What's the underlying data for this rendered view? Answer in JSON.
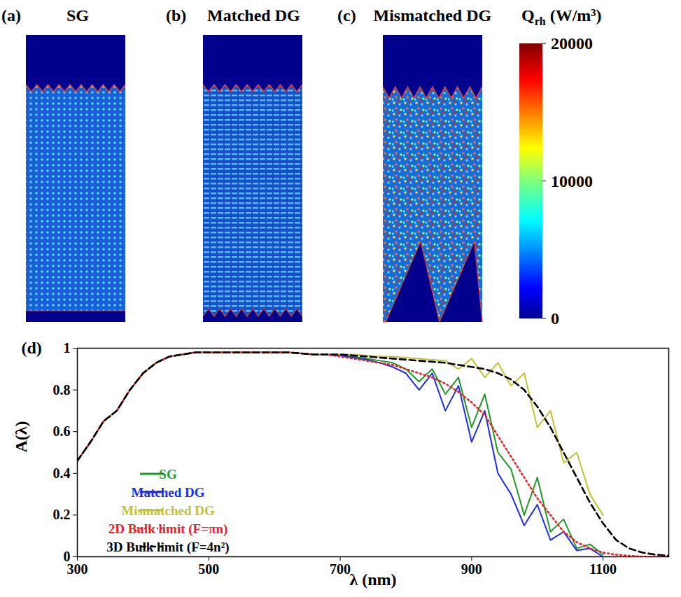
{
  "field_maps": {
    "panels": [
      {
        "label": "(a)",
        "title": "SG"
      },
      {
        "label": "(b)",
        "title": "Matched DG"
      },
      {
        "label": "(c)",
        "title": "Mismatched DG"
      }
    ],
    "colorbar": {
      "symbol": "Q",
      "subscript": "rh",
      "unit": "(W/m³)",
      "range": [
        0,
        20000
      ],
      "ticks": [
        0,
        10000,
        20000
      ]
    }
  },
  "chart_data": {
    "type": "line",
    "panel_label": "(d)",
    "x_label": "λ (nm)",
    "y_label": "A(λ)",
    "xlim": [
      300,
      1200
    ],
    "xticks": [
      300,
      500,
      700,
      900,
      1100
    ],
    "ylim": [
      0,
      1
    ],
    "yticks": [
      0,
      0.2,
      0.4,
      0.6,
      0.8,
      1
    ],
    "grid": false,
    "legend": "lower left",
    "x": [
      300,
      320,
      340,
      360,
      380,
      400,
      420,
      440,
      460,
      480,
      500,
      520,
      540,
      560,
      580,
      600,
      620,
      640,
      660,
      680,
      700,
      720,
      740,
      760,
      780,
      800,
      820,
      840,
      860,
      880,
      900,
      920,
      940,
      960,
      980,
      1000,
      1020,
      1040,
      1060,
      1080,
      1100,
      1120,
      1140,
      1160,
      1180,
      1200
    ],
    "series": [
      {
        "name": "SG",
        "color": "#1f9a2a",
        "line_style": "solid",
        "values": [
          0.46,
          0.55,
          0.65,
          0.7,
          0.8,
          0.88,
          0.93,
          0.96,
          0.97,
          0.98,
          0.98,
          0.98,
          0.98,
          0.98,
          0.98,
          0.98,
          0.98,
          0.975,
          0.97,
          0.97,
          0.965,
          0.96,
          0.95,
          0.94,
          0.93,
          0.9,
          0.84,
          0.9,
          0.78,
          0.86,
          0.62,
          0.78,
          0.5,
          0.42,
          0.2,
          0.38,
          0.12,
          0.18,
          0.04,
          0.06,
          0.01,
          null,
          null,
          null,
          null,
          null
        ]
      },
      {
        "name": "Matched DG",
        "color": "#1a2ee6",
        "line_style": "solid",
        "values": [
          0.46,
          0.55,
          0.65,
          0.7,
          0.8,
          0.88,
          0.93,
          0.96,
          0.97,
          0.98,
          0.98,
          0.98,
          0.98,
          0.98,
          0.98,
          0.98,
          0.98,
          0.975,
          0.97,
          0.97,
          0.965,
          0.955,
          0.945,
          0.93,
          0.91,
          0.88,
          0.8,
          0.88,
          0.7,
          0.82,
          0.55,
          0.7,
          0.4,
          0.3,
          0.15,
          0.25,
          0.08,
          0.12,
          0.03,
          0.04,
          0,
          null,
          null,
          null,
          null,
          null
        ]
      },
      {
        "name": "Mismatched DG",
        "color": "#c2c236",
        "line_style": "solid",
        "values": [
          0.46,
          0.55,
          0.65,
          0.7,
          0.8,
          0.88,
          0.93,
          0.96,
          0.97,
          0.98,
          0.98,
          0.98,
          0.98,
          0.98,
          0.98,
          0.98,
          0.98,
          0.975,
          0.97,
          0.97,
          0.97,
          0.97,
          0.965,
          0.96,
          0.96,
          0.955,
          0.95,
          0.945,
          0.94,
          0.9,
          0.95,
          0.86,
          0.93,
          0.82,
          0.88,
          0.62,
          0.7,
          0.45,
          0.5,
          0.3,
          0.2,
          null,
          null,
          null,
          null,
          null
        ]
      },
      {
        "name": "2D Bulk limit (F=πn)",
        "color": "#e8222a",
        "line_style": "dotted",
        "values": [
          0.46,
          0.55,
          0.65,
          0.7,
          0.8,
          0.88,
          0.93,
          0.96,
          0.97,
          0.98,
          0.98,
          0.98,
          0.98,
          0.98,
          0.98,
          0.98,
          0.98,
          0.975,
          0.97,
          0.97,
          0.96,
          0.95,
          0.94,
          0.93,
          0.92,
          0.9,
          0.88,
          0.86,
          0.83,
          0.79,
          0.74,
          0.68,
          0.58,
          0.48,
          0.38,
          0.28,
          0.2,
          0.12,
          0.07,
          0.04,
          0.02,
          0.01,
          0.005,
          0,
          0,
          0
        ]
      },
      {
        "name": "3D Bulk limit (F=4n²)",
        "color": "#000000",
        "line_style": "dashed",
        "values": [
          0.46,
          0.55,
          0.65,
          0.7,
          0.8,
          0.88,
          0.93,
          0.96,
          0.97,
          0.98,
          0.98,
          0.98,
          0.98,
          0.98,
          0.98,
          0.98,
          0.98,
          0.975,
          0.97,
          0.97,
          0.97,
          0.965,
          0.96,
          0.955,
          0.95,
          0.945,
          0.94,
          0.935,
          0.93,
          0.92,
          0.91,
          0.9,
          0.88,
          0.85,
          0.8,
          0.72,
          0.62,
          0.5,
          0.38,
          0.26,
          0.16,
          0.08,
          0.04,
          0.02,
          0.01,
          0.005
        ]
      }
    ]
  }
}
